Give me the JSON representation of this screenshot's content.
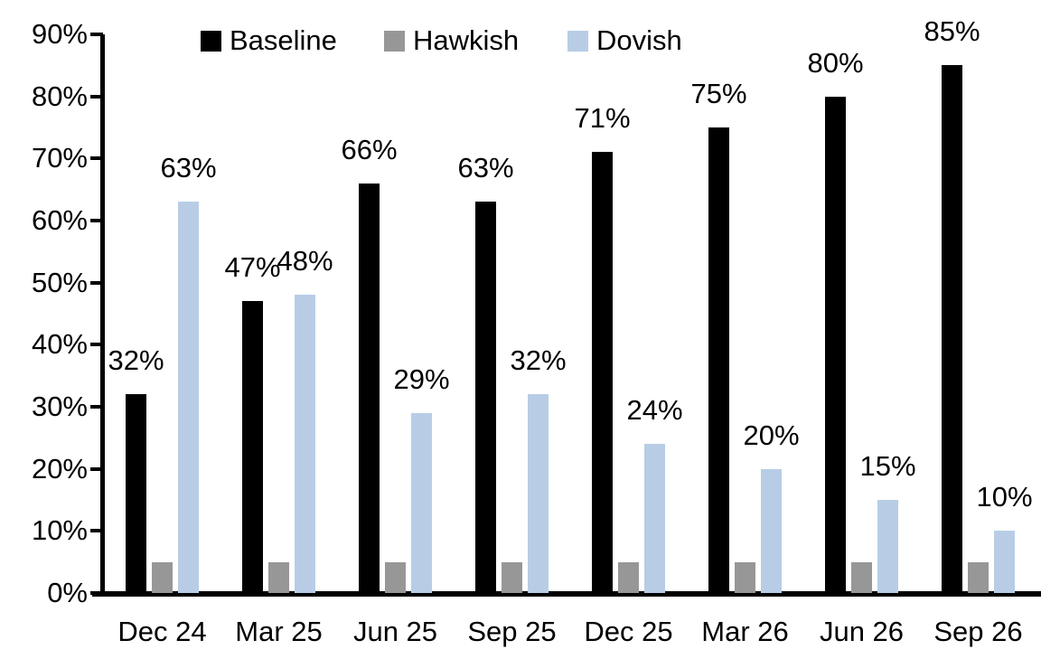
{
  "chart_data": {
    "type": "bar",
    "title": "",
    "xlabel": "",
    "ylabel": "",
    "categories": [
      "Dec 24",
      "Mar 25",
      "Jun 25",
      "Sep 25",
      "Dec 25",
      "Mar 26",
      "Jun 26",
      "Sep 26"
    ],
    "series": [
      {
        "name": "Baseline",
        "color": "#000000",
        "values": [
          32,
          47,
          66,
          63,
          71,
          75,
          80,
          85
        ],
        "labels": [
          "32%",
          "47%",
          "66%",
          "63%",
          "71%",
          "75%",
          "80%",
          "85%"
        ]
      },
      {
        "name": "Hawkish",
        "color": "#979797",
        "values": [
          5,
          5,
          5,
          5,
          5,
          5,
          5,
          5
        ],
        "labels": null
      },
      {
        "name": "Dovish",
        "color": "#B8CDE5",
        "values": [
          63,
          48,
          29,
          32,
          24,
          20,
          15,
          10
        ],
        "labels": [
          "63%",
          "48%",
          "29%",
          "32%",
          "24%",
          "20%",
          "15%",
          "10%"
        ]
      }
    ],
    "ylim": [
      0,
      90
    ],
    "y_tick_labels": [
      "0%",
      "10%",
      "20%",
      "30%",
      "40%",
      "50%",
      "60%",
      "70%",
      "80%",
      "90%"
    ],
    "grid": false,
    "legend_position": "top"
  }
}
